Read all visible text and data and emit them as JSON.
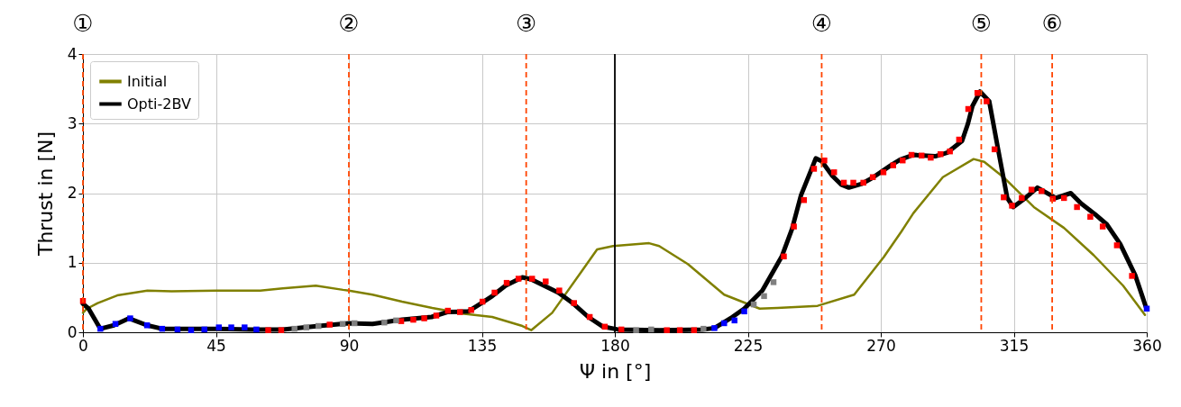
{
  "chart_data": {
    "type": "line",
    "xlabel": "Ψ in [°]",
    "ylabel": "Thrust in [N]",
    "xlim": [
      0,
      360
    ],
    "xticks": [
      0,
      45,
      90,
      135,
      180,
      225,
      270,
      315,
      360
    ],
    "ylim": [
      0,
      4
    ],
    "yticks": [
      0,
      1,
      2,
      3,
      4
    ],
    "grid": true,
    "legend": "top left",
    "line_style": "solid",
    "series": [
      {
        "name": "Initial",
        "color": "#808000",
        "x": [
          0,
          1.4,
          5,
          11.6,
          21.8,
          30,
          45.2,
          60,
          67.6,
          78.8,
          88,
          90,
          98,
          108,
          118.2,
          128.4,
          138.5,
          148.7,
          151.7,
          158.8,
          169,
          174,
          179.4,
          191.6,
          195,
          204.7,
          217,
          229,
          235,
          248.6,
          261,
          271,
          277,
          281,
          291,
          301.4,
          305,
          311.5,
          321.8,
          332,
          342,
          352,
          359.4
        ],
        "values": [
          0.28,
          0.34,
          0.42,
          0.53,
          0.6,
          0.59,
          0.6,
          0.6,
          0.63,
          0.67,
          0.61,
          0.6,
          0.54,
          0.44,
          0.35,
          0.27,
          0.22,
          0.09,
          0.03,
          0.28,
          0.89,
          1.19,
          1.24,
          1.28,
          1.24,
          0.98,
          0.54,
          0.34,
          0.35,
          0.38,
          0.54,
          1.08,
          1.45,
          1.71,
          2.23,
          2.49,
          2.45,
          2.23,
          1.8,
          1.5,
          1.11,
          0.67,
          0.25
        ]
      },
      {
        "name": "Opti-2BV",
        "color": "#000000",
        "x": [
          0,
          1.9,
          5.9,
          10.5,
          15.6,
          21.7,
          26.8,
          45,
          57,
          67.6,
          79.8,
          90,
          98,
          108,
          118,
          123.3,
          130.4,
          134.5,
          138.5,
          143,
          148.7,
          151.7,
          160.9,
          166,
          171,
          176,
          181,
          195,
          209.6,
          213.7,
          219.8,
          223.8,
          229.9,
          236.5,
          240,
          243,
          246.7,
          248,
          250,
          253.6,
          256.7,
          259.2,
          263.3,
          266.8,
          273.4,
          276.5,
          281,
          288.4,
          292.4,
          297.5,
          299.5,
          301,
          303.6,
          306.7,
          309.7,
          312.8,
          314.8,
          318.9,
          323,
          329.2,
          334.3,
          337.8,
          342.4,
          346.5,
          351,
          356.1,
          359.9
        ],
        "values": [
          0.41,
          0.34,
          0.05,
          0.1,
          0.2,
          0.1,
          0.05,
          0.05,
          0.04,
          0.04,
          0.09,
          0.13,
          0.12,
          0.18,
          0.22,
          0.29,
          0.3,
          0.41,
          0.52,
          0.67,
          0.79,
          0.76,
          0.57,
          0.41,
          0.22,
          0.08,
          0.04,
          0.03,
          0.04,
          0.06,
          0.22,
          0.34,
          0.6,
          1.09,
          1.49,
          1.97,
          2.36,
          2.5,
          2.46,
          2.25,
          2.12,
          2.08,
          2.13,
          2.21,
          2.4,
          2.48,
          2.55,
          2.53,
          2.58,
          2.75,
          3.0,
          3.25,
          3.46,
          3.32,
          2.63,
          1.93,
          1.8,
          1.93,
          2.08,
          1.93,
          2.0,
          1.85,
          1.7,
          1.55,
          1.27,
          0.82,
          0.34
        ]
      },
      {
        "color": "#ff0000",
        "type": "scatter",
        "marker": "square",
        "x": [
          0,
          62.7,
          67.1,
          83.5,
          107.7,
          111.8,
          115.5,
          119.6,
          123.5,
          127.6,
          131.4,
          135.2,
          139.3,
          143.4,
          147.4,
          152,
          156.6,
          161.2,
          166.2,
          171.5,
          176.6,
          182.2,
          197.6,
          202,
          206.8,
          237.2,
          240.6,
          244,
          247.4,
          250.9,
          254.2,
          257.5,
          260.7,
          264.1,
          267.3,
          270.9,
          274.2,
          277.4,
          280.4,
          283.8,
          286.9,
          290.2,
          293.4,
          296.5,
          299.6,
          302.7,
          305.8,
          308.5,
          311.6,
          314.4,
          317.7,
          321,
          324.4,
          328.2,
          332,
          336.4,
          340.9,
          345.1,
          349.9,
          355
        ],
        "values": [
          0.45,
          0.03,
          0.03,
          0.11,
          0.16,
          0.18,
          0.2,
          0.24,
          0.31,
          0.29,
          0.32,
          0.44,
          0.57,
          0.71,
          0.77,
          0.77,
          0.73,
          0.6,
          0.42,
          0.22,
          0.08,
          0.04,
          0.03,
          0.03,
          0.03,
          1.09,
          1.52,
          1.9,
          2.35,
          2.47,
          2.3,
          2.15,
          2.15,
          2.15,
          2.23,
          2.3,
          2.4,
          2.47,
          2.55,
          2.54,
          2.51,
          2.56,
          2.6,
          2.77,
          3.21,
          3.44,
          3.32,
          2.63,
          1.94,
          1.82,
          1.93,
          2.05,
          2.03,
          1.92,
          1.93,
          1.8,
          1.66,
          1.52,
          1.25,
          0.81
        ]
      },
      {
        "color": "#0000ff",
        "type": "scatter",
        "marker": "square",
        "x": [
          5.9,
          11,
          16,
          21.7,
          26.8,
          32,
          36.6,
          41.1,
          46,
          50.2,
          54.7,
          58.7,
          213.7,
          217,
          220.5,
          223.8,
          360
        ],
        "values": [
          0.05,
          0.12,
          0.2,
          0.1,
          0.05,
          0.04,
          0.03,
          0.04,
          0.07,
          0.07,
          0.07,
          0.04,
          0.06,
          0.13,
          0.17,
          0.3,
          0.34
        ]
      },
      {
        "color": "#808080",
        "type": "scatter",
        "marker": "square",
        "x": [
          71.6,
          75.6,
          79.7,
          87.9,
          91.9,
          102,
          106,
          187.2,
          192.3,
          210,
          227,
          230.5,
          233.7
        ],
        "values": [
          0.05,
          0.07,
          0.09,
          0.12,
          0.13,
          0.14,
          0.17,
          0.03,
          0.04,
          0.05,
          0.4,
          0.52,
          0.72
        ]
      }
    ],
    "ref_lines": [
      {
        "axis": "x",
        "value": 0,
        "label": "①",
        "color": "#ff4500",
        "line_style": "dashed"
      },
      {
        "axis": "x",
        "value": 90,
        "label": "②",
        "color": "#ff4500",
        "line_style": "dashed"
      },
      {
        "axis": "x",
        "value": 150,
        "label": "③",
        "color": "#ff4500",
        "line_style": "dashed"
      },
      {
        "axis": "x",
        "value": 180,
        "color": "#000000",
        "line_style": "solid"
      },
      {
        "axis": "x",
        "value": 250,
        "label": "④",
        "color": "#ff4500",
        "line_style": "dashed"
      },
      {
        "axis": "x",
        "value": 304,
        "label": "⑤",
        "color": "#ff4500",
        "line_style": "dashed"
      },
      {
        "axis": "x",
        "value": 328,
        "label": "⑥",
        "color": "#ff4500",
        "line_style": "dashed"
      }
    ]
  }
}
